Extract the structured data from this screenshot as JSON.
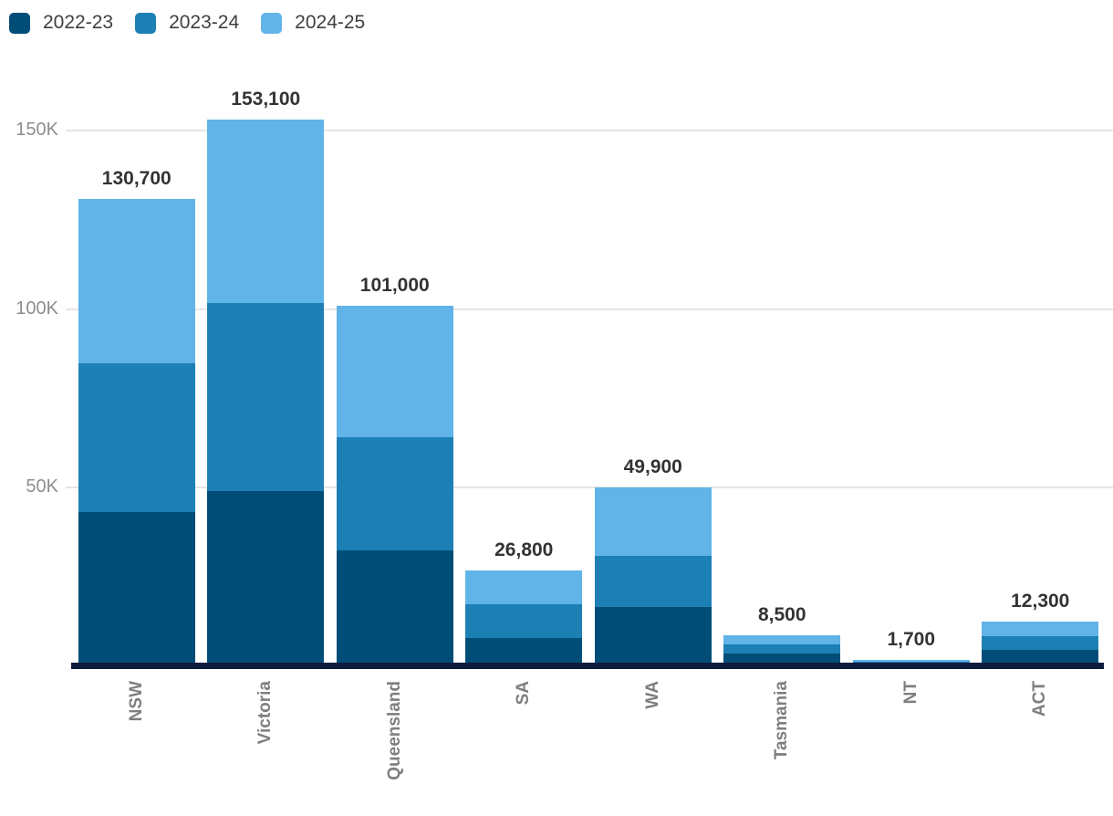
{
  "chart_data": {
    "type": "bar",
    "stacked": true,
    "title": "",
    "xlabel": "",
    "ylabel": "",
    "categories": [
      "NSW",
      "Victoria",
      "Queensland",
      "SA",
      "WA",
      "Tasmania",
      "NT",
      "ACT"
    ],
    "series": [
      {
        "name": "2022-23",
        "color": "#004e78",
        "values": [
          43200,
          48900,
          32400,
          7800,
          16500,
          3400,
          600,
          4500
        ]
      },
      {
        "name": "2023-24",
        "color": "#1d80b5",
        "values": [
          41600,
          52700,
          31700,
          9400,
          14200,
          2600,
          500,
          3800
        ]
      },
      {
        "name": "2024-25",
        "color": "#61b4e8",
        "values": [
          45900,
          51500,
          36900,
          9600,
          19200,
          2500,
          600,
          4000
        ]
      }
    ],
    "totals": [
      130700,
      153100,
      101000,
      26800,
      49900,
      8500,
      1700,
      12300
    ],
    "total_labels": [
      "130,700",
      "153,100",
      "101,000",
      "26,800",
      "49,900",
      "8,500",
      "1,700",
      "12,300"
    ],
    "y_ticks": [
      {
        "label": "50K",
        "value": 50000
      },
      {
        "label": "100K",
        "value": 100000
      },
      {
        "label": "150K",
        "value": 150000
      }
    ],
    "ylim": [
      0,
      185000
    ],
    "grid": "horizontal",
    "legend_position": "top-left",
    "colors": {
      "axis_line": "#0f1b3d",
      "gridline": "#e5e5e5",
      "y_tick_text": "#8e8e8e",
      "x_label_text": "#7e7e7e",
      "total_label_text": "#333333",
      "legend_text": "#404040"
    }
  }
}
